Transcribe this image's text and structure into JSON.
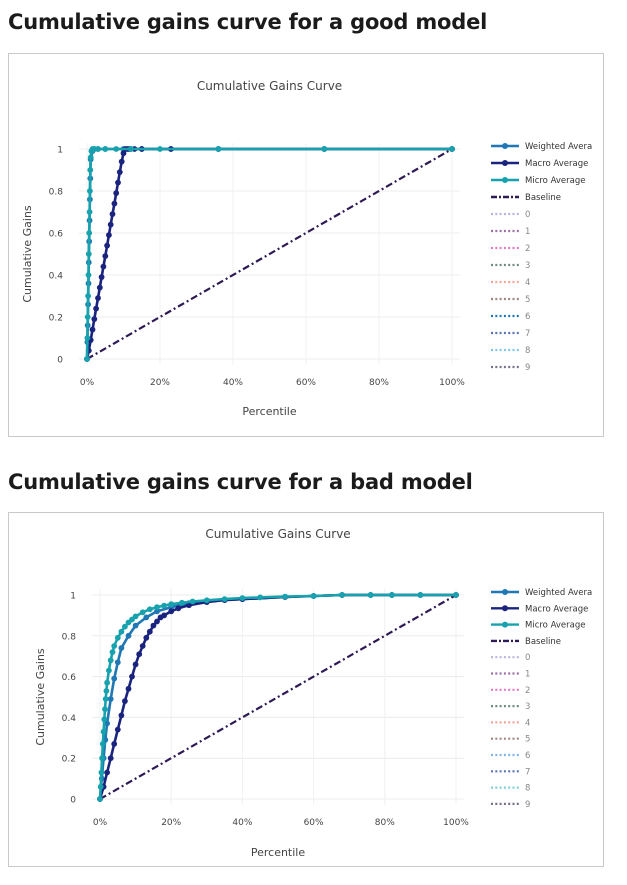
{
  "headings": {
    "good": "Cumulative gains curve for a good model",
    "bad": "Cumulative gains curve for a bad model"
  },
  "chart_data": [
    {
      "type": "line",
      "title": "Cumulative Gains Curve",
      "xlabel": "Percentile",
      "ylabel": "Cumulative Gains",
      "xlim": [
        0,
        100
      ],
      "ylim": [
        0,
        1
      ],
      "x_ticks": [
        "0%",
        "20%",
        "40%",
        "60%",
        "80%",
        "100%"
      ],
      "y_ticks": [
        "0",
        "0.2",
        "0.4",
        "0.6",
        "0.8",
        "1"
      ],
      "grid": true,
      "legend_position": "right",
      "series": [
        {
          "name": "Weighted Avera",
          "color": "#1f77b4",
          "style": "solid-markers",
          "x": [
            0,
            0.1,
            0.2,
            0.3,
            0.4,
            0.5,
            0.6,
            0.7,
            0.8,
            0.9,
            1.0,
            1.5,
            2,
            3,
            5,
            10,
            15,
            23,
            36,
            65,
            100
          ],
          "y": [
            0,
            0.08,
            0.16,
            0.26,
            0.36,
            0.46,
            0.56,
            0.66,
            0.76,
            0.86,
            0.95,
            0.99,
            1,
            1,
            1,
            1,
            1,
            1,
            1,
            1,
            1
          ]
        },
        {
          "name": "Macro Average",
          "color": "#1a237e",
          "style": "solid-markers",
          "x": [
            0,
            0.5,
            1,
            1.5,
            2,
            2.5,
            3,
            3.5,
            4,
            4.5,
            5,
            5.5,
            6,
            6.5,
            7,
            7.5,
            8,
            8.5,
            9,
            9.5,
            10,
            10.5,
            11,
            11.5,
            12,
            13,
            15,
            23,
            36,
            65,
            100
          ],
          "y": [
            0,
            0.04,
            0.09,
            0.14,
            0.19,
            0.24,
            0.29,
            0.34,
            0.39,
            0.44,
            0.49,
            0.54,
            0.59,
            0.64,
            0.69,
            0.74,
            0.79,
            0.84,
            0.89,
            0.94,
            0.98,
            1,
            1,
            1,
            1,
            1,
            1,
            1,
            1,
            1,
            1
          ]
        },
        {
          "name": "Micro Average",
          "color": "#17a2ad",
          "style": "solid-markers",
          "x": [
            0,
            0.1,
            0.2,
            0.3,
            0.4,
            0.5,
            0.6,
            0.7,
            0.8,
            0.9,
            1.0,
            1.2,
            1.5,
            2,
            3,
            5,
            8,
            12,
            20,
            36,
            65,
            100
          ],
          "y": [
            0,
            0.1,
            0.2,
            0.3,
            0.4,
            0.5,
            0.6,
            0.7,
            0.8,
            0.9,
            0.96,
            0.99,
            1,
            1,
            1,
            1,
            1,
            1,
            1,
            1,
            1,
            1
          ]
        },
        {
          "name": "Baseline",
          "color": "#2e1a55",
          "style": "dashdot",
          "x": [
            0,
            100
          ],
          "y": [
            0,
            1
          ]
        },
        {
          "name": "0",
          "color": "#b9b2e0",
          "style": "dotted",
          "legend_only": true
        },
        {
          "name": "1",
          "color": "#9c6fa6",
          "style": "dotted",
          "legend_only": true
        },
        {
          "name": "2",
          "color": "#e377c2",
          "style": "dotted",
          "legend_only": true
        },
        {
          "name": "3",
          "color": "#6e8a84",
          "style": "dotted",
          "legend_only": true
        },
        {
          "name": "4",
          "color": "#f4a59a",
          "style": "dotted",
          "legend_only": true
        },
        {
          "name": "5",
          "color": "#a0857c",
          "style": "dotted",
          "legend_only": true
        },
        {
          "name": "6",
          "color": "#1f77b4",
          "style": "dotted",
          "legend_only": true
        },
        {
          "name": "7",
          "color": "#5874b5",
          "style": "dotted",
          "legend_only": true
        },
        {
          "name": "8",
          "color": "#7fc7e8",
          "style": "dotted",
          "legend_only": true
        },
        {
          "name": "9",
          "color": "#7a6f88",
          "style": "dotted",
          "legend_only": true
        }
      ]
    },
    {
      "type": "line",
      "title": "Cumulative Gains Curve",
      "xlabel": "Percentile",
      "ylabel": "Cumulative Gains",
      "xlim": [
        0,
        100
      ],
      "ylim": [
        0,
        1
      ],
      "x_ticks": [
        "0%",
        "20%",
        "40%",
        "60%",
        "80%",
        "100%"
      ],
      "y_ticks": [
        "0",
        "0.2",
        "0.4",
        "0.6",
        "0.8",
        "1"
      ],
      "grid": true,
      "legend_position": "right",
      "series": [
        {
          "name": "Weighted Avera",
          "color": "#1f77b4",
          "style": "solid-markers",
          "x": [
            0,
            0.5,
            1,
            1.5,
            2,
            3,
            4,
            5,
            6,
            8,
            10,
            13,
            16,
            20,
            25,
            30,
            40,
            52,
            60,
            68,
            76,
            82,
            90,
            100
          ],
          "y": [
            0,
            0.1,
            0.2,
            0.29,
            0.37,
            0.49,
            0.59,
            0.67,
            0.74,
            0.8,
            0.85,
            0.89,
            0.92,
            0.94,
            0.96,
            0.97,
            0.98,
            0.99,
            0.995,
            1,
            1,
            1,
            1,
            1
          ]
        },
        {
          "name": "Macro Average",
          "color": "#1a237e",
          "style": "solid-markers",
          "x": [
            0,
            1,
            2,
            3,
            4,
            5,
            6,
            7,
            8,
            9,
            10,
            11,
            12,
            13,
            14,
            15,
            16,
            17,
            18,
            20,
            22,
            25,
            30,
            35,
            40,
            52,
            60,
            68,
            76,
            82,
            90,
            100
          ],
          "y": [
            0,
            0.06,
            0.13,
            0.2,
            0.27,
            0.34,
            0.41,
            0.48,
            0.54,
            0.6,
            0.66,
            0.71,
            0.75,
            0.79,
            0.82,
            0.85,
            0.87,
            0.89,
            0.9,
            0.92,
            0.935,
            0.95,
            0.965,
            0.975,
            0.98,
            0.99,
            0.995,
            1,
            1,
            1,
            1,
            1
          ]
        },
        {
          "name": "Micro Average",
          "color": "#17a2ad",
          "style": "solid-markers",
          "x": [
            0,
            0.2,
            0.4,
            0.6,
            0.8,
            1.0,
            1.2,
            1.4,
            1.6,
            1.8,
            2,
            2.5,
            3,
            3.5,
            4,
            5,
            6,
            7,
            8,
            9,
            10,
            12,
            14,
            16,
            18,
            20,
            23,
            26,
            30,
            35,
            40,
            45,
            52,
            60,
            68,
            76,
            82,
            90,
            100
          ],
          "y": [
            0,
            0.06,
            0.13,
            0.2,
            0.27,
            0.33,
            0.39,
            0.44,
            0.49,
            0.53,
            0.57,
            0.63,
            0.68,
            0.72,
            0.75,
            0.79,
            0.82,
            0.845,
            0.865,
            0.88,
            0.895,
            0.915,
            0.93,
            0.94,
            0.948,
            0.955,
            0.962,
            0.968,
            0.974,
            0.98,
            0.985,
            0.988,
            0.992,
            0.995,
            1,
            1,
            1,
            1,
            1
          ]
        },
        {
          "name": "Baseline",
          "color": "#2e1a55",
          "style": "dashdot",
          "x": [
            0,
            100
          ],
          "y": [
            0,
            1
          ]
        },
        {
          "name": "0",
          "color": "#b9b2e0",
          "style": "dotted",
          "legend_only": true
        },
        {
          "name": "1",
          "color": "#9c6fa6",
          "style": "dotted",
          "legend_only": true
        },
        {
          "name": "2",
          "color": "#e377c2",
          "style": "dotted",
          "legend_only": true
        },
        {
          "name": "3",
          "color": "#6e8a84",
          "style": "dotted",
          "legend_only": true
        },
        {
          "name": "4",
          "color": "#f4a59a",
          "style": "dotted",
          "legend_only": true
        },
        {
          "name": "5",
          "color": "#a0857c",
          "style": "dotted",
          "legend_only": true
        },
        {
          "name": "6",
          "color": "#7fb5e6",
          "style": "dotted",
          "legend_only": true
        },
        {
          "name": "7",
          "color": "#5874b5",
          "style": "dotted",
          "legend_only": true
        },
        {
          "name": "8",
          "color": "#7fd0d6",
          "style": "dotted",
          "legend_only": true
        },
        {
          "name": "9",
          "color": "#7a6f88",
          "style": "dotted",
          "legend_only": true
        }
      ]
    }
  ]
}
